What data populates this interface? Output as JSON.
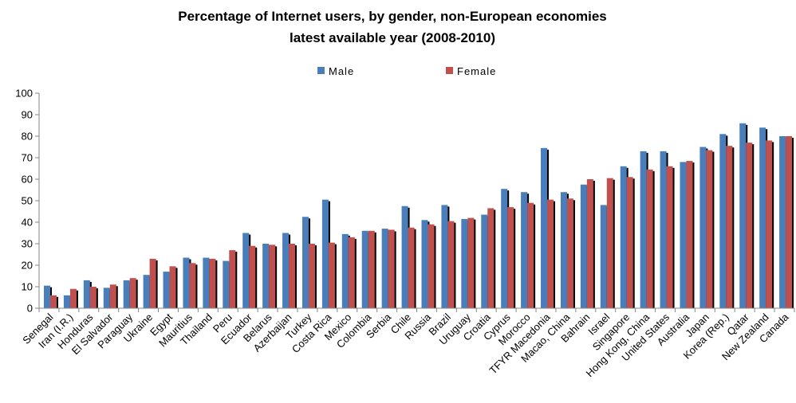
{
  "chart_data": {
    "type": "bar",
    "title": "Percentage of Internet users, by gender, non-European economies",
    "subtitle": "latest available year (2008-2010)",
    "xlabel": "",
    "ylabel": "",
    "ylim": [
      0,
      100
    ],
    "yticks": [
      "0",
      "10",
      "20",
      "30",
      "40",
      "50",
      "60",
      "70",
      "80",
      "90",
      "100"
    ],
    "grid": false,
    "legend_position": "top-center",
    "categories": [
      "Senegal",
      "Iran (I.R.)",
      "Honduras",
      "El Salvador",
      "Paraguay",
      "Ukraine",
      "Egypt",
      "Mauritius",
      "Thailand",
      "Peru",
      "Ecuador",
      "Belarus",
      "Azerbaijan",
      "Turkey",
      "Costa Rica",
      "Mexico",
      "Colombia",
      "Serbia",
      "Chile",
      "Russia",
      "Brazil",
      "Uruguay",
      "Croatia",
      "Cyprus",
      "Morocco",
      "TFYR Macedonia",
      "Macao, China",
      "Bahrain",
      "Israel",
      "Singapore",
      "Hong Kong, China",
      "United States",
      "Australia",
      "Japan",
      "Korea (Rep.)",
      "Qatar",
      "New Zealand",
      "Canada"
    ],
    "series": [
      {
        "name": "Male",
        "color": "#4a7ebb",
        "values": [
          10.5,
          6,
          13,
          9.5,
          13,
          15.5,
          17,
          23.5,
          23.5,
          22,
          35,
          30,
          35,
          42.5,
          50.5,
          34.5,
          36,
          37,
          47.5,
          41,
          48,
          41.5,
          43.5,
          55.5,
          54,
          74.5,
          54,
          57.5,
          48,
          66,
          73,
          73,
          68,
          75,
          81,
          86,
          84,
          80
        ]
      },
      {
        "name": "Female",
        "color": "#c0504d",
        "values": [
          6,
          9,
          10,
          11,
          14,
          23,
          19.5,
          21,
          23,
          27,
          29,
          29.5,
          30,
          30,
          30.5,
          33,
          36,
          36.5,
          37.5,
          39,
          40.5,
          42,
          46.5,
          47,
          49,
          50.5,
          51,
          60,
          60.5,
          61,
          64.5,
          66,
          68.5,
          73.5,
          75.5,
          77,
          78,
          80
        ]
      }
    ]
  }
}
